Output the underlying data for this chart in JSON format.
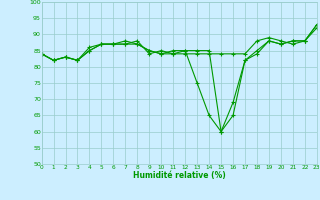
{
  "xlabel": "Humidité relative (%)",
  "background_color": "#cceeff",
  "grid_color": "#99cccc",
  "line_color": "#009900",
  "ylim": [
    50,
    100
  ],
  "xlim": [
    0,
    23
  ],
  "yticks": [
    50,
    55,
    60,
    65,
    70,
    75,
    80,
    85,
    90,
    95,
    100
  ],
  "xticks": [
    0,
    1,
    2,
    3,
    4,
    5,
    6,
    7,
    8,
    9,
    10,
    11,
    12,
    13,
    14,
    15,
    16,
    17,
    18,
    19,
    20,
    21,
    22,
    23
  ],
  "series": [
    [
      84,
      82,
      83,
      82,
      85,
      87,
      87,
      87,
      87,
      85,
      84,
      84,
      84,
      84,
      84,
      84,
      84,
      84,
      88,
      89,
      88,
      87,
      88,
      92
    ],
    [
      84,
      82,
      83,
      82,
      86,
      87,
      87,
      88,
      87,
      85,
      84,
      85,
      85,
      85,
      85,
      60,
      65,
      82,
      85,
      88,
      87,
      88,
      88,
      93
    ],
    [
      84,
      82,
      83,
      82,
      85,
      87,
      87,
      87,
      88,
      84,
      85,
      84,
      85,
      75,
      65,
      60,
      69,
      82,
      84,
      88,
      87,
      88,
      88,
      93
    ]
  ]
}
